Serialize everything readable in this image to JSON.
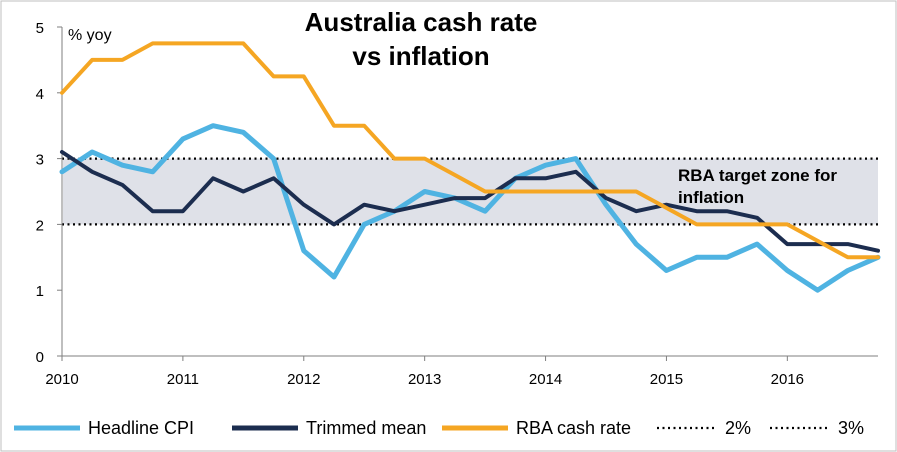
{
  "chart_data": {
    "type": "line",
    "title_lines": [
      "Australia cash rate",
      "vs inflation"
    ],
    "unit_label": "% yoy",
    "xlim": [
      2010,
      2016.75
    ],
    "ylim": [
      0,
      5
    ],
    "x_ticks": [
      2010,
      2011,
      2012,
      2013,
      2014,
      2015,
      2016
    ],
    "x_tick_labels": [
      "2010",
      "2011",
      "2012",
      "2013",
      "2014",
      "2015",
      "2016"
    ],
    "y_ticks": [
      0,
      1,
      2,
      3,
      4,
      5
    ],
    "y_tick_labels": [
      "0",
      "1",
      "2",
      "3",
      "4",
      "5"
    ],
    "target_zone": {
      "from": 2,
      "to": 3
    },
    "annotation_lines": [
      "RBA target zone for",
      "inflation"
    ],
    "x": [
      2010.0,
      2010.25,
      2010.5,
      2010.75,
      2011.0,
      2011.25,
      2011.5,
      2011.75,
      2012.0,
      2012.25,
      2012.5,
      2012.75,
      2013.0,
      2013.25,
      2013.5,
      2013.75,
      2014.0,
      2014.25,
      2014.5,
      2014.75,
      2015.0,
      2015.25,
      2015.5,
      2015.75,
      2016.0,
      2016.25,
      2016.5,
      2016.75
    ],
    "series": [
      {
        "name": "Headline CPI",
        "color": "#4fb3e2",
        "width": 5,
        "values": [
          2.8,
          3.1,
          2.9,
          2.8,
          3.3,
          3.5,
          3.4,
          3.0,
          1.6,
          1.2,
          2.0,
          2.2,
          2.5,
          2.4,
          2.2,
          2.7,
          2.9,
          3.0,
          2.3,
          1.7,
          1.3,
          1.5,
          1.5,
          1.7,
          1.3,
          1.0,
          1.3,
          1.5
        ]
      },
      {
        "name": "Trimmed mean",
        "color": "#1c2d4f",
        "width": 4,
        "values": [
          3.1,
          2.8,
          2.6,
          2.2,
          2.2,
          2.7,
          2.5,
          2.7,
          2.3,
          2.0,
          2.3,
          2.2,
          2.3,
          2.4,
          2.4,
          2.7,
          2.7,
          2.8,
          2.4,
          2.2,
          2.3,
          2.2,
          2.2,
          2.1,
          1.7,
          1.7,
          1.7,
          1.6
        ]
      },
      {
        "name": "RBA cash rate",
        "color": "#f5a623",
        "width": 4,
        "values": [
          4.0,
          4.5,
          4.5,
          4.75,
          4.75,
          4.75,
          4.75,
          4.25,
          4.25,
          3.5,
          3.5,
          3.0,
          3.0,
          2.75,
          2.5,
          2.5,
          2.5,
          2.5,
          2.5,
          2.5,
          2.25,
          2.0,
          2.0,
          2.0,
          2.0,
          1.75,
          1.5,
          1.5
        ]
      }
    ],
    "reference_lines": [
      {
        "name": "2%",
        "value": 2
      },
      {
        "name": "3%",
        "value": 3
      }
    ],
    "legend": [
      {
        "label": "Headline CPI",
        "style": "solid",
        "color": "#4fb3e2"
      },
      {
        "label": "Trimmed mean",
        "style": "solid",
        "color": "#1c2d4f"
      },
      {
        "label": "RBA cash rate",
        "style": "solid",
        "color": "#f5a623"
      },
      {
        "label": "2%",
        "style": "dotted",
        "color": "#000000"
      },
      {
        "label": "3%",
        "style": "dotted",
        "color": "#000000"
      }
    ],
    "legend_position": "bottom",
    "grid": false,
    "zone_color": "#dfe1e8"
  }
}
